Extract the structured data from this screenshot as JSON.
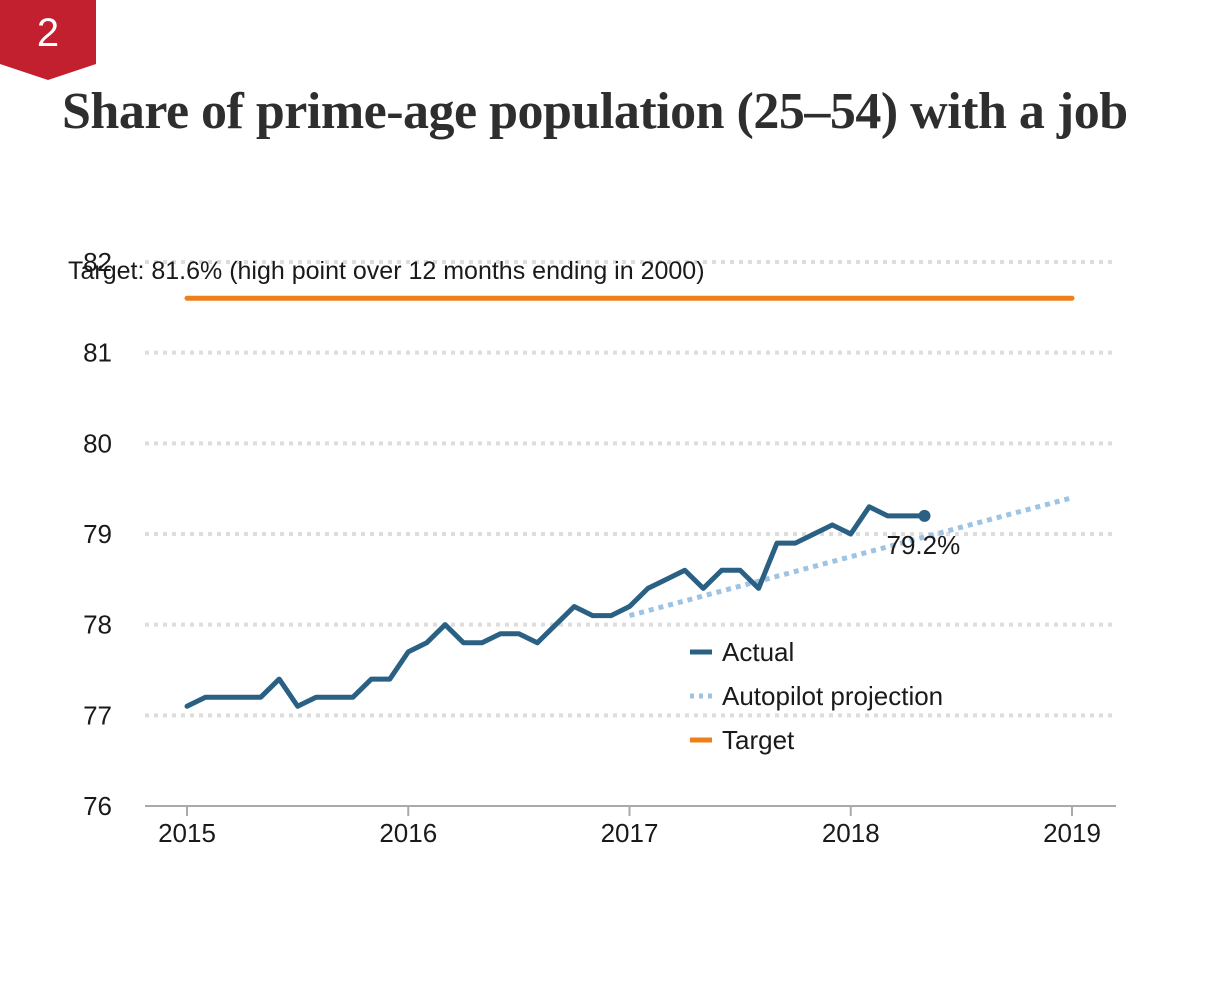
{
  "badge": {
    "number": "2",
    "color": "#c2202f"
  },
  "title": "Share of prime-age population (25–54) with a job",
  "chart_data": {
    "type": "line",
    "title": "Share of prime-age population (25–54) with a job",
    "xlabel": "",
    "ylabel": "",
    "xlim": [
      2015,
      2019
    ],
    "ylim": [
      76,
      82
    ],
    "x_ticks": [
      "2015",
      "2016",
      "2017",
      "2018",
      "2019"
    ],
    "y_ticks": [
      "76",
      "77",
      "78",
      "79",
      "80",
      "81",
      "82"
    ],
    "grid": true,
    "legend_position": "bottom-right",
    "colors": {
      "actual": "#2a6083",
      "projection": "#9fc3e3",
      "target": "#ee7f1b",
      "grid": "#dddddd",
      "axis": "#aaaaaa"
    },
    "series": [
      {
        "name": "Actual",
        "style": "solid",
        "x": [
          "2015-01",
          "2015-02",
          "2015-03",
          "2015-04",
          "2015-05",
          "2015-06",
          "2015-07",
          "2015-08",
          "2015-09",
          "2015-10",
          "2015-11",
          "2015-12",
          "2016-01",
          "2016-02",
          "2016-03",
          "2016-04",
          "2016-05",
          "2016-06",
          "2016-07",
          "2016-08",
          "2016-09",
          "2016-10",
          "2016-11",
          "2016-12",
          "2017-01",
          "2017-02",
          "2017-03",
          "2017-04",
          "2017-05",
          "2017-06",
          "2017-07",
          "2017-08",
          "2017-09",
          "2017-10",
          "2017-11",
          "2017-12",
          "2018-01",
          "2018-02",
          "2018-03",
          "2018-04",
          "2018-05"
        ],
        "values": [
          77.1,
          77.2,
          77.2,
          77.2,
          77.2,
          77.4,
          77.1,
          77.2,
          77.2,
          77.2,
          77.4,
          77.4,
          77.7,
          77.8,
          78.0,
          77.8,
          77.8,
          77.9,
          77.9,
          77.8,
          78.0,
          78.2,
          78.1,
          78.1,
          78.2,
          78.4,
          78.5,
          78.6,
          78.4,
          78.6,
          78.6,
          78.4,
          78.9,
          78.9,
          79.0,
          79.1,
          79.0,
          79.3,
          79.2,
          79.2,
          79.2
        ]
      },
      {
        "name": "Autopilot projection",
        "style": "dotted",
        "x": [
          "2017-01",
          "2019-01"
        ],
        "values": [
          78.1,
          79.4
        ]
      },
      {
        "name": "Target",
        "style": "solid",
        "x": [
          "2015-01",
          "2019-01"
        ],
        "values": [
          81.6,
          81.6
        ]
      }
    ],
    "annotations": {
      "target_label": "Target: 81.6% (high point over 12 months ending in 2000)",
      "last_value_label": "79.2%"
    }
  }
}
